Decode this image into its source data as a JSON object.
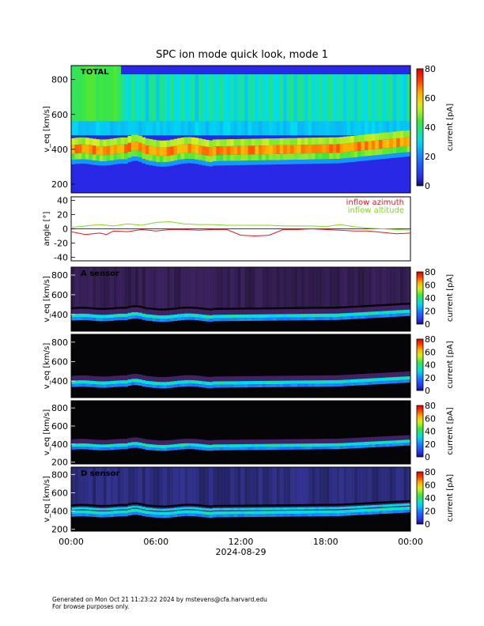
{
  "title": "SPC ion mode quick look, mode 1",
  "footer": {
    "line1": "Generated on Mon Oct 21 11:23:22 2024 by mstevens@cfa.harvard.edu",
    "line2": "For browse purposes only."
  },
  "colors": {
    "azimuth": "#e8141b",
    "altitude": "#7fd81e",
    "zero_line": "#000000"
  },
  "chart_data": [
    {
      "type": "heatmap",
      "label": "TOTAL",
      "ylabel": "v_eq [km/s]",
      "ylim": [
        150,
        880
      ],
      "yticks": [
        200,
        400,
        600,
        800
      ],
      "colorbar": {
        "label": "current [pA]",
        "range": [
          0,
          80
        ],
        "ticks": [
          0,
          20,
          40,
          60,
          80
        ]
      },
      "bands": {
        "core_center_kms": 400,
        "core_width_kms": 45,
        "halo_fill": "green"
      }
    },
    {
      "type": "line",
      "ylabel": "angle [°]",
      "ylim": [
        -45,
        45
      ],
      "yticks": [
        -40,
        -20,
        0,
        20,
        40
      ],
      "series": [
        {
          "name": "inflow azimuth",
          "x_hours": [
            0,
            1,
            2,
            2.5,
            3,
            4,
            5,
            6,
            7,
            8,
            9,
            10,
            11,
            12,
            13,
            14,
            15,
            16,
            17,
            18,
            19,
            20,
            21,
            22,
            23,
            24
          ],
          "values": [
            -4,
            -8,
            -6,
            -8,
            -3,
            -4,
            -1,
            -3,
            -1,
            -1,
            -2,
            -1,
            -1,
            -9,
            -10,
            -9,
            -1,
            -1,
            0,
            -1,
            -2,
            -3,
            -3,
            -5,
            -7,
            -6
          ]
        },
        {
          "name": "inflow altitude",
          "x_hours": [
            0,
            1,
            2,
            2.5,
            3,
            4,
            5,
            6,
            7,
            8,
            9,
            10,
            11,
            12,
            13,
            14,
            15,
            16,
            17,
            18,
            19,
            20,
            21,
            22,
            23,
            24
          ],
          "values": [
            2,
            4,
            6,
            5,
            4,
            7,
            5,
            9,
            10,
            7,
            6,
            6,
            5,
            5,
            5,
            5,
            4,
            4,
            4,
            3,
            6,
            3,
            1,
            0,
            -1,
            -2
          ]
        }
      ]
    },
    {
      "type": "heatmap",
      "label": "A sensor",
      "ylabel": "v_eq [km/s]",
      "ylim": [
        230,
        880
      ],
      "yticks": [
        400,
        600,
        800
      ],
      "colorbar": {
        "label": "current [pA]",
        "range": [
          0,
          80
        ],
        "ticks": [
          0,
          20,
          40,
          60,
          80
        ]
      }
    },
    {
      "type": "heatmap",
      "label": "",
      "ylabel": "v_eq [km/s]",
      "ylim": [
        230,
        880
      ],
      "yticks": [
        400,
        600,
        800
      ],
      "colorbar": {
        "label": "current [pA]",
        "range": [
          0,
          80
        ],
        "ticks": [
          0,
          20,
          40,
          60,
          80
        ]
      }
    },
    {
      "type": "heatmap",
      "label": "",
      "ylabel": "v_eq [km/s]",
      "ylim": [
        180,
        880
      ],
      "yticks": [
        200,
        400,
        600,
        800
      ],
      "colorbar": {
        "label": "current [pA]",
        "range": [
          0,
          80
        ],
        "ticks": [
          0,
          20,
          40,
          60,
          80
        ]
      }
    },
    {
      "type": "heatmap",
      "label": "D sensor",
      "ylabel": "v_eq [km/s]",
      "ylim": [
        180,
        880
      ],
      "yticks": [
        200,
        400,
        600,
        800
      ],
      "colorbar": {
        "label": "current [pA]",
        "range": [
          0,
          80
        ],
        "ticks": [
          0,
          20,
          40,
          60,
          80
        ]
      }
    }
  ],
  "xaxis": {
    "ticks": [
      "00:00",
      "06:00",
      "12:00",
      "18:00",
      "00:00"
    ],
    "tick_hours": [
      0,
      6,
      12,
      18,
      24
    ],
    "date_label": "2024-08-29",
    "range_hours": [
      0,
      24
    ]
  }
}
